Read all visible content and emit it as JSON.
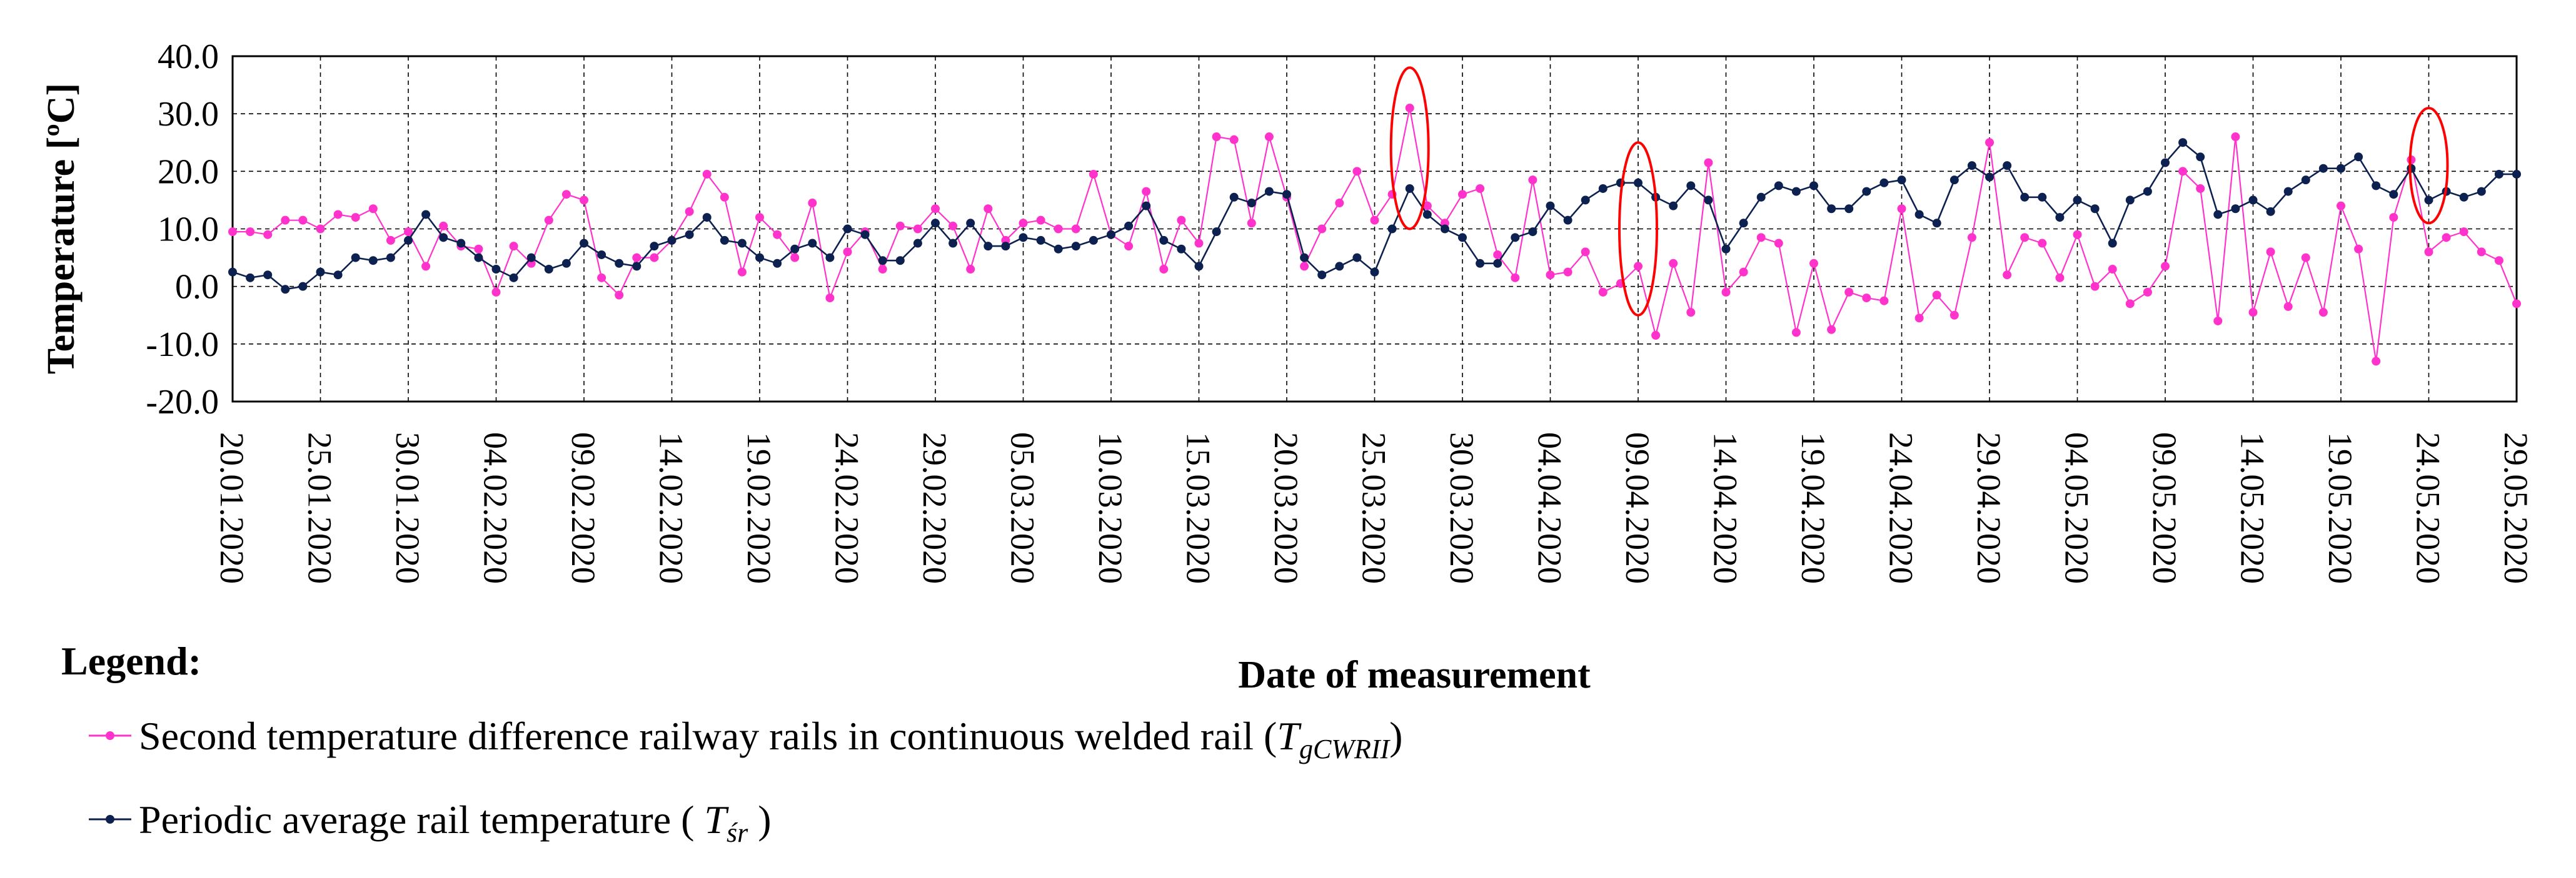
{
  "chart_data": {
    "type": "line",
    "ylabel": "Temperature [ºC]",
    "xlabel": "Date of measurement",
    "ylim": [
      -20,
      40
    ],
    "y_ticks": [
      "40.0",
      "30.0",
      "20.0",
      "10.0",
      "0.0",
      "-10.0",
      "-20.0"
    ],
    "x_ticks": [
      "20.01.2020",
      "25.01.2020",
      "30.01.2020",
      "04.02.2020",
      "09.02.2020",
      "14.02.2020",
      "19.02.2020",
      "24.02.2020",
      "29.02.2020",
      "05.03.2020",
      "10.03.2020",
      "15.03.2020",
      "20.03.2020",
      "25.03.2020",
      "30.03.2020",
      "04.04.2020",
      "09.04.2020",
      "14.04.2020",
      "19.04.2020",
      "24.04.2020",
      "29.04.2020",
      "04.05.2020",
      "09.05.2020",
      "14.05.2020",
      "19.05.2020",
      "24.05.2020",
      "29.05.2020"
    ],
    "grid": true,
    "series": [
      {
        "name": "Second temperature difference railway rails in continuous welded rail (TgCWRII)",
        "color": "#ff33cc",
        "values": [
          9.5,
          9.5,
          9.0,
          11.5,
          11.5,
          10.0,
          12.5,
          12.0,
          13.5,
          8.0,
          9.5,
          3.5,
          10.5,
          7.0,
          6.5,
          -1.0,
          7.0,
          4.0,
          11.5,
          16.0,
          15.0,
          1.5,
          -1.5,
          5.0,
          5.0,
          8.0,
          13.0,
          19.5,
          15.5,
          2.5,
          12.0,
          9.0,
          5.0,
          14.5,
          -2.0,
          6.0,
          9.5,
          3.0,
          10.5,
          10.0,
          13.5,
          10.5,
          3.0,
          13.5,
          8.0,
          11.0,
          11.5,
          10.0,
          10.0,
          19.5,
          9.0,
          7.0,
          16.5,
          3.0,
          11.5,
          7.5,
          26.0,
          25.5,
          11.0,
          26.0,
          15.5,
          3.5,
          10.0,
          14.5,
          20.0,
          11.5,
          16.0,
          31.0,
          14.0,
          11.0,
          16.0,
          17.0,
          5.5,
          1.5,
          18.5,
          2.0,
          2.5,
          6.0,
          -1.0,
          0.5,
          3.5,
          -8.5,
          4.0,
          -4.5,
          21.5,
          -1.0,
          2.5,
          8.5,
          7.5,
          -8.0,
          4.0,
          -7.5,
          -1.0,
          -2.0,
          -2.5,
          13.5,
          -5.5,
          -1.5,
          -5.0,
          8.5,
          25.0,
          2.0,
          8.5,
          7.5,
          1.5,
          9.0,
          0.0,
          3.0,
          -3.0,
          -1.0,
          3.5,
          20.0,
          17.0,
          -6.0,
          26.0,
          -4.5,
          6.0,
          -3.5,
          5.0,
          -4.5,
          14.0,
          6.5,
          -13.0,
          12.0,
          22.0,
          6.0,
          8.5,
          9.5,
          6.0,
          4.5,
          -3.0
        ]
      },
      {
        "name": "Periodic average rail temperature (Tśr)",
        "color": "#0d2150",
        "values": [
          2.5,
          1.5,
          2.0,
          -0.5,
          0.0,
          2.5,
          2.0,
          5.0,
          4.5,
          5.0,
          8.0,
          12.5,
          8.5,
          7.5,
          5.0,
          3.0,
          1.5,
          5.0,
          3.0,
          4.0,
          7.5,
          5.5,
          4.0,
          3.5,
          7.0,
          8.0,
          9.0,
          12.0,
          8.0,
          7.5,
          5.0,
          4.0,
          6.5,
          7.5,
          5.0,
          10.0,
          9.0,
          4.5,
          4.5,
          7.5,
          11.0,
          7.5,
          11.0,
          7.0,
          7.0,
          8.5,
          8.0,
          6.5,
          7.0,
          8.0,
          9.0,
          10.5,
          14.0,
          8.0,
          6.5,
          3.5,
          9.5,
          15.5,
          14.5,
          16.5,
          16.0,
          5.0,
          2.0,
          3.5,
          5.0,
          2.5,
          10.0,
          17.0,
          12.5,
          10.0,
          8.5,
          4.0,
          4.0,
          8.5,
          9.5,
          14.0,
          11.5,
          15.0,
          17.0,
          18.0,
          18.0,
          15.5,
          14.0,
          17.5,
          15.0,
          6.5,
          11.0,
          15.5,
          17.5,
          16.5,
          17.5,
          13.5,
          13.5,
          16.5,
          18.0,
          18.5,
          12.5,
          11.0,
          18.5,
          21.0,
          19.0,
          21.0,
          15.5,
          15.5,
          12.0,
          15.0,
          13.5,
          7.5,
          15.0,
          16.5,
          21.5,
          25.0,
          22.5,
          12.5,
          13.5,
          15.0,
          13.0,
          16.5,
          18.5,
          20.5,
          20.5,
          22.5,
          17.5,
          16.0,
          20.5,
          15.0,
          16.5,
          15.5,
          16.5,
          19.5,
          19.5
        ]
      }
    ],
    "annotations": [
      {
        "type": "ellipse",
        "color": "#ff0000",
        "around_index": 67,
        "y_from": 10,
        "y_to": 38
      },
      {
        "type": "ellipse",
        "color": "#ff0000",
        "around_index": 80,
        "y_from": -5,
        "y_to": 25
      },
      {
        "type": "ellipse",
        "color": "#ff0000",
        "around_index": 125,
        "y_from": 11,
        "y_to": 31
      }
    ],
    "legend": {
      "title": "Legend:",
      "placement": "bottom-left",
      "pink": {
        "text": "Second temperature difference railway rails in continuous welded rail (",
        "symbol": "T",
        "subscript": "gCWRII",
        "close": ")"
      },
      "navy": {
        "text": "Periodic average rail temperature ( ",
        "symbol": "T",
        "subscript": "śr",
        "close": " )"
      }
    }
  }
}
